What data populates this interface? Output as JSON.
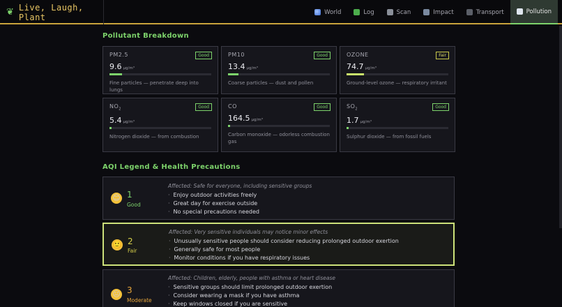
{
  "app": {
    "title": "Live, Laugh, Plant",
    "logo_icon": "leaf-icon"
  },
  "nav": [
    {
      "label": "World",
      "icon": "globe-icon"
    },
    {
      "label": "Log",
      "icon": "checkbox-icon"
    },
    {
      "label": "Scan",
      "icon": "scanner-icon"
    },
    {
      "label": "Impact",
      "icon": "chart-icon"
    },
    {
      "label": "Transport",
      "icon": "car-icon"
    },
    {
      "label": "Pollution",
      "icon": "chart-up-icon",
      "active": true
    }
  ],
  "breakdown": {
    "title": "Pollutant Breakdown",
    "cards": [
      {
        "name": "PM2.5",
        "sub": "",
        "badge": "Good",
        "value": "9.6",
        "unit": "μg/m³",
        "level": 0.12,
        "desc": "Fine particles — penetrate deep into lungs"
      },
      {
        "name": "PM10",
        "sub": "",
        "badge": "Good",
        "value": "13.4",
        "unit": "μg/m³",
        "level": 0.1,
        "desc": "Coarse particles — dust and pollen"
      },
      {
        "name": "OZONE",
        "sub": "",
        "badge": "Fair",
        "value": "74.7",
        "unit": "μg/m³",
        "level": 0.17,
        "desc": "Ground-level ozone — respiratory irritant"
      },
      {
        "name": "NO",
        "sub": "2",
        "badge": "Good",
        "value": "5.4",
        "unit": "μg/m³",
        "level": 0.02,
        "desc": "Nitrogen dioxide — from combustion"
      },
      {
        "name": "CO",
        "sub": "",
        "badge": "Good",
        "value": "164.5",
        "unit": "μg/m³",
        "level": 0.01,
        "desc": "Carbon monoxide — odorless combustion gas"
      },
      {
        "name": "SO",
        "sub": "2",
        "badge": "Good",
        "value": "1.7",
        "unit": "μg/m³",
        "level": 0.01,
        "desc": "Sulphur dioxide — from fossil fuels"
      }
    ]
  },
  "legend": {
    "title": "AQI Legend & Health Precautions",
    "levels": [
      {
        "num": "1",
        "label": "Good",
        "color": "#7dd36b",
        "face": "😊",
        "affected": "Affected: Safe for everyone, including sensitive groups",
        "tips": [
          "Enjoy outdoor activities freely",
          "Great day for exercise outside",
          "No special precautions needed"
        ]
      },
      {
        "num": "2",
        "label": "Fair",
        "color": "#d8d14a",
        "face": "🙂",
        "affected": "Affected: Very sensitive individuals may notice minor effects",
        "tips": [
          "Unusually sensitive people should consider reducing prolonged outdoor exertion",
          "Generally safe for most people",
          "Monitor conditions if you have respiratory issues"
        ]
      },
      {
        "num": "3",
        "label": "Moderate",
        "color": "#e6a53b",
        "face": "😐",
        "affected": "Affected: Children, elderly, people with asthma or heart disease",
        "tips": [
          "Sensitive groups should limit prolonged outdoor exertion",
          "Consider wearing a mask if you have asthma",
          "Keep windows closed if you are sensitive"
        ]
      }
    ]
  }
}
